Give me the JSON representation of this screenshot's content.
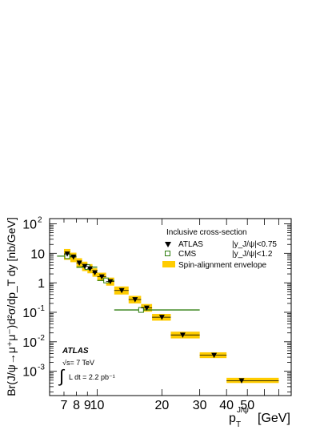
{
  "chart_data": {
    "type": "scatter",
    "xscale": "log",
    "yscale": "log",
    "xlim": [
      6,
      80
    ],
    "ylim": [
      0.00015,
      150
    ],
    "xticks": [
      "7",
      "8",
      "9",
      "10",
      "20",
      "30",
      "40",
      "50"
    ],
    "yticks": [
      {
        "base": "10",
        "exp": "2"
      },
      {
        "base": "10",
        "exp": ""
      },
      {
        "base": "1",
        "exp": ""
      },
      {
        "base": "10",
        "exp": "-1"
      },
      {
        "base": "10",
        "exp": "-2"
      },
      {
        "base": "10",
        "exp": "-3"
      }
    ],
    "ylabel": "Br(J/ψ→μ⁺μ⁻)d²σ/dp_T dy [nb/GeV]",
    "xlabel": {
      "main": "p",
      "sub": "T",
      "sup": "J/ψ",
      "unit": "[GeV]"
    },
    "legend": {
      "title": "Inclusive cross-section",
      "position": "top-right",
      "entries": [
        {
          "label": "ATLAS",
          "cut": "|y_J/ψ|<0.75",
          "marker": "down-triangle"
        },
        {
          "label": "CMS",
          "cut": "|y_J/ψ|<1.2",
          "marker": "open-square"
        },
        {
          "label": "Spin-alignment envelope",
          "marker": "band"
        }
      ]
    },
    "annotations": {
      "experiment": "ATLAS",
      "energy": "√s= 7 TeV",
      "lumi": "L dt = 2.2 pb⁻¹"
    },
    "series": [
      {
        "name": "ATLAS",
        "marker": "down-triangle",
        "points": [
          {
            "x": 7.25,
            "xlo": 7.0,
            "xhi": 7.5,
            "y": 9.5,
            "env_lo": 6.0,
            "env_hi": 14.0
          },
          {
            "x": 7.75,
            "xlo": 7.5,
            "xhi": 8.0,
            "y": 7.5,
            "env_lo": 5.0,
            "env_hi": 10.5
          },
          {
            "x": 8.25,
            "xlo": 8.0,
            "xhi": 8.5,
            "y": 4.7,
            "env_lo": 3.2,
            "env_hi": 6.8
          },
          {
            "x": 8.75,
            "xlo": 8.5,
            "xhi": 9.0,
            "y": 3.6,
            "env_lo": 2.5,
            "env_hi": 5.2
          },
          {
            "x": 9.25,
            "xlo": 9.0,
            "xhi": 9.5,
            "y": 3.0,
            "env_lo": 2.1,
            "env_hi": 4.3
          },
          {
            "x": 9.75,
            "xlo": 9.5,
            "xhi": 10.0,
            "y": 2.2,
            "env_lo": 1.6,
            "env_hi": 3.1
          },
          {
            "x": 10.5,
            "xlo": 10.0,
            "xhi": 11.0,
            "y": 1.6,
            "env_lo": 1.15,
            "env_hi": 2.2
          },
          {
            "x": 11.5,
            "xlo": 11.0,
            "xhi": 12.0,
            "y": 1.1,
            "env_lo": 0.8,
            "env_hi": 1.5
          },
          {
            "x": 13.0,
            "xlo": 12.0,
            "xhi": 14.0,
            "y": 0.55,
            "env_lo": 0.4,
            "env_hi": 0.75
          },
          {
            "x": 15.0,
            "xlo": 14.0,
            "xhi": 16.0,
            "y": 0.27,
            "env_lo": 0.2,
            "env_hi": 0.36
          },
          {
            "x": 17.0,
            "xlo": 16.0,
            "xhi": 18.0,
            "y": 0.14,
            "env_lo": 0.105,
            "env_hi": 0.19
          },
          {
            "x": 20.0,
            "xlo": 18.0,
            "xhi": 22.0,
            "y": 0.068,
            "env_lo": 0.052,
            "env_hi": 0.088
          },
          {
            "x": 25.0,
            "xlo": 22.0,
            "xhi": 30.0,
            "y": 0.017,
            "env_lo": 0.013,
            "env_hi": 0.022
          },
          {
            "x": 35.0,
            "xlo": 30.0,
            "xhi": 40.0,
            "y": 0.0035,
            "env_lo": 0.0028,
            "env_hi": 0.0044
          },
          {
            "x": 47.0,
            "xlo": 40.0,
            "xhi": 70.0,
            "y": 0.00048,
            "env_lo": 0.0004,
            "env_hi": 0.0006
          }
        ]
      },
      {
        "name": "CMS",
        "marker": "open-square",
        "points": [
          {
            "x": 7.25,
            "xlo": 6.5,
            "xhi": 8.0,
            "y": 8.0
          },
          {
            "x": 9.0,
            "xlo": 8.0,
            "xhi": 10.0,
            "y": 3.4
          },
          {
            "x": 11.0,
            "xlo": 10.0,
            "xhi": 12.0,
            "y": 1.2
          },
          {
            "x": 16.0,
            "xlo": 12.0,
            "xhi": 30.0,
            "y": 0.12
          }
        ]
      }
    ],
    "colors": {
      "atlas_marker": "#000000",
      "cms_marker": "#2e7d0e",
      "cms_line": "#2e7d0e",
      "envelope": "#ffcc00"
    }
  }
}
